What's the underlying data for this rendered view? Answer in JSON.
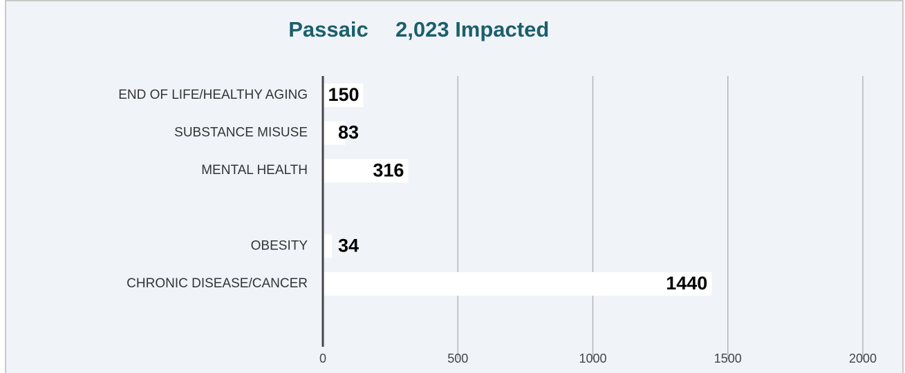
{
  "chart_data": {
    "type": "barh",
    "title": "Passaic",
    "subtitle": "2,023 Impacted",
    "categories": [
      "END OF LIFE/HEALTHY AGING",
      "SUBSTANCE MISUSE",
      "MENTAL HEALTH",
      null,
      "OBESITY",
      "CHRONIC DISEASE/CANCER",
      null
    ],
    "values": [
      150,
      83,
      316,
      null,
      34,
      1440,
      null
    ],
    "color": "#ffffff",
    "xlim": [
      0,
      2000
    ],
    "xticks": [
      0,
      500,
      1000,
      1500,
      2000
    ],
    "grid": true
  }
}
